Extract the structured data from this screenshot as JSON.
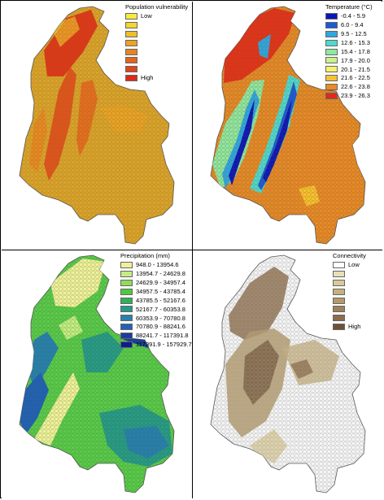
{
  "panels": [
    {
      "id": "vulnerability",
      "legend_title": "Population vulnerability",
      "classes": [
        {
          "label": "Low",
          "color": "#f6ea3c"
        },
        {
          "label": "",
          "color": "#f3d631"
        },
        {
          "label": "",
          "color": "#efbd28"
        },
        {
          "label": "",
          "color": "#eba225"
        },
        {
          "label": "",
          "color": "#e88322"
        },
        {
          "label": "",
          "color": "#e4641e"
        },
        {
          "label": "",
          "color": "#e0451b"
        },
        {
          "label": "High",
          "color": "#de2a17"
        }
      ],
      "base_color": "#d9a32c"
    },
    {
      "id": "temperature",
      "legend_title": "Temperature (°C)",
      "classes": [
        {
          "label": "-0.4 - 5.9",
          "color": "#0a17b8"
        },
        {
          "label": "6.0 - 9.4",
          "color": "#1a5bd6"
        },
        {
          "label": "9.5 - 12.5",
          "color": "#2ea7e2"
        },
        {
          "label": "12.6 - 15.3",
          "color": "#4ed9cf"
        },
        {
          "label": "15.4 - 17.8",
          "color": "#8de8a2"
        },
        {
          "label": "17.9 - 20.0",
          "color": "#c9f28b"
        },
        {
          "label": "20.1 - 21.5",
          "color": "#f6f36a"
        },
        {
          "label": "21.6 - 22.5",
          "color": "#f5c232"
        },
        {
          "label": "22.6 - 23.8",
          "color": "#ec8a22"
        },
        {
          "label": "23.9 - 26.3",
          "color": "#e02a1b"
        }
      ],
      "base_color": "#e38a2a"
    },
    {
      "id": "precipitation",
      "legend_title": "Precipitation (mm)",
      "classes": [
        {
          "label": "948.0 - 13954.6",
          "color": "#f2ef9a"
        },
        {
          "label": "13954.7 - 24629.8",
          "color": "#c5ec82"
        },
        {
          "label": "24629.9 - 34957.4",
          "color": "#8fdb5a"
        },
        {
          "label": "34957.5 - 43785.4",
          "color": "#4fc93a"
        },
        {
          "label": "43785.5 - 52167.6",
          "color": "#2fb05a"
        },
        {
          "label": "52167.7 - 60353.8",
          "color": "#2a9a86"
        },
        {
          "label": "60353.9 - 70780.8",
          "color": "#2a7fae"
        },
        {
          "label": "70780.9 - 88241.6",
          "color": "#2460b6"
        },
        {
          "label": "88241.7 - 117391.8",
          "color": "#1c3c9c"
        },
        {
          "label": "117391.9 - 157929.7",
          "color": "#0c1e8c"
        }
      ],
      "base_color": "#5cc94a"
    },
    {
      "id": "connectivity",
      "legend_title": "Connectivity",
      "classes": [
        {
          "label": "Low",
          "color": "#ffffff"
        },
        {
          "label": "",
          "color": "#e8dfb4"
        },
        {
          "label": "",
          "color": "#d8c997"
        },
        {
          "label": "",
          "color": "#c6b07f"
        },
        {
          "label": "",
          "color": "#b39a6b"
        },
        {
          "label": "",
          "color": "#a08259"
        },
        {
          "label": "",
          "color": "#8c6c49"
        },
        {
          "label": "High",
          "color": "#6e5033"
        }
      ],
      "base_color": "#f4f4f4"
    }
  ]
}
